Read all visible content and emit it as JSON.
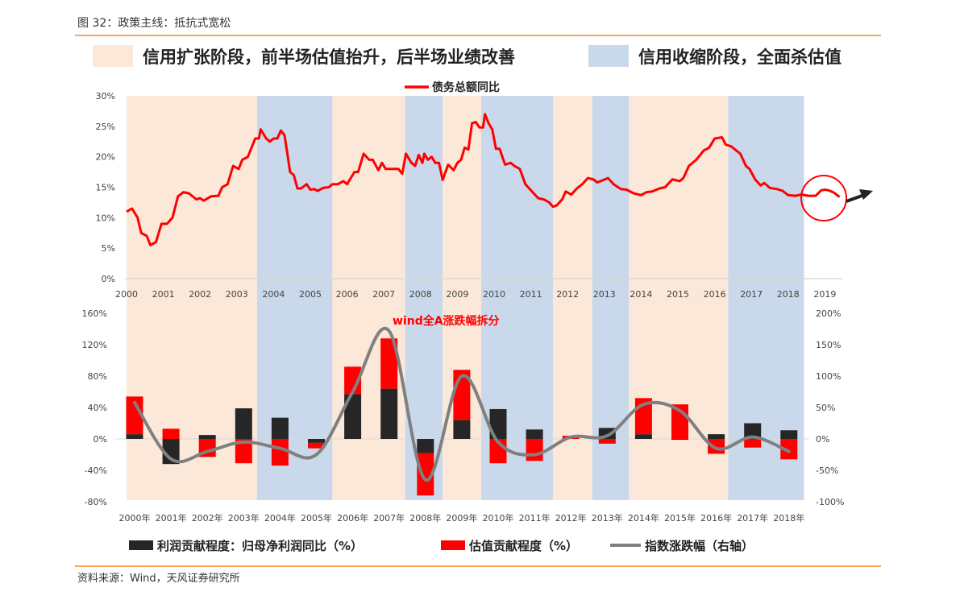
{
  "figure_title": "图 32：政策主线：抵抗式宽松",
  "source": "资料来源：Wind，天风证券研究所",
  "phase_legend": {
    "expansion": "信用扩张阶段，前半场估值抬升，后半场业绩改善",
    "contraction": "信用收缩阶段，全面杀估值"
  },
  "colors": {
    "expansion": "#fce8d9",
    "contraction": "#c9d8ea",
    "line": "#ff0000",
    "profit": "#262626",
    "valuation": "#ff0000",
    "index": "#808080",
    "accent": "#f08a24"
  },
  "phases": [
    {
      "type": "expansion",
      "from": 2000,
      "to": 2003.55
    },
    {
      "type": "contraction",
      "from": 2003.55,
      "to": 2005.6
    },
    {
      "type": "expansion",
      "from": 2005.6,
      "to": 2007.58
    },
    {
      "type": "contraction",
      "from": 2007.58,
      "to": 2008.6
    },
    {
      "type": "expansion",
      "from": 2008.6,
      "to": 2009.65
    },
    {
      "type": "contraction",
      "from": 2009.65,
      "to": 2011.6
    },
    {
      "type": "expansion",
      "from": 2011.6,
      "to": 2012.67
    },
    {
      "type": "contraction",
      "from": 2012.67,
      "to": 2013.67
    },
    {
      "type": "expansion",
      "from": 2013.67,
      "to": 2016.37
    },
    {
      "type": "contraction",
      "from": 2016.37,
      "to": 2018.43
    }
  ],
  "chart_data": [
    {
      "type": "line",
      "series": [
        {
          "name": "债务总额同比",
          "points": [
            [
              2000.0,
              11
            ],
            [
              2000.15,
              11.5
            ],
            [
              2000.3,
              10
            ],
            [
              2000.4,
              7.5
            ],
            [
              2000.55,
              7
            ],
            [
              2000.65,
              5.5
            ],
            [
              2000.8,
              6
            ],
            [
              2000.95,
              9
            ],
            [
              2001.1,
              9
            ],
            [
              2001.25,
              10
            ],
            [
              2001.4,
              13.5
            ],
            [
              2001.55,
              14.2
            ],
            [
              2001.7,
              14
            ],
            [
              2001.9,
              13
            ],
            [
              2002.0,
              13.2
            ],
            [
              2002.1,
              12.8
            ],
            [
              2002.3,
              13.5
            ],
            [
              2002.5,
              13.6
            ],
            [
              2002.6,
              15
            ],
            [
              2002.75,
              15.5
            ],
            [
              2002.9,
              18.5
            ],
            [
              2003.05,
              18
            ],
            [
              2003.15,
              19.5
            ],
            [
              2003.3,
              20
            ],
            [
              2003.5,
              23
            ],
            [
              2003.6,
              23
            ],
            [
              2003.65,
              24.5
            ],
            [
              2003.8,
              23
            ],
            [
              2003.9,
              22.5
            ],
            [
              2004.0,
              23
            ],
            [
              2004.1,
              23
            ],
            [
              2004.2,
              24.3
            ],
            [
              2004.3,
              23.5
            ],
            [
              2004.45,
              17.5
            ],
            [
              2004.55,
              17
            ],
            [
              2004.65,
              14.8
            ],
            [
              2004.75,
              14.8
            ],
            [
              2004.9,
              15.5
            ],
            [
              2005.0,
              14.6
            ],
            [
              2005.1,
              14.7
            ],
            [
              2005.2,
              14.4
            ],
            [
              2005.35,
              14.9
            ],
            [
              2005.5,
              15
            ],
            [
              2005.6,
              15.5
            ],
            [
              2005.75,
              15.5
            ],
            [
              2005.9,
              16
            ],
            [
              2006.0,
              15.5
            ],
            [
              2006.2,
              17.5
            ],
            [
              2006.3,
              17.5
            ],
            [
              2006.45,
              20.5
            ],
            [
              2006.6,
              19.5
            ],
            [
              2006.7,
              19.5
            ],
            [
              2006.85,
              17.8
            ],
            [
              2006.95,
              19
            ],
            [
              2007.05,
              18
            ],
            [
              2007.2,
              18
            ],
            [
              2007.4,
              18
            ],
            [
              2007.5,
              17.2
            ],
            [
              2007.6,
              20.5
            ],
            [
              2007.75,
              19
            ],
            [
              2007.85,
              18.5
            ],
            [
              2007.95,
              20.3
            ],
            [
              2008.05,
              19
            ],
            [
              2008.1,
              20.5
            ],
            [
              2008.2,
              19.5
            ],
            [
              2008.3,
              20
            ],
            [
              2008.4,
              19
            ],
            [
              2008.5,
              19
            ],
            [
              2008.6,
              16.2
            ],
            [
              2008.75,
              18.7
            ],
            [
              2008.9,
              17.8
            ],
            [
              2009.0,
              19
            ],
            [
              2009.1,
              19.5
            ],
            [
              2009.2,
              21.5
            ],
            [
              2009.3,
              21.2
            ],
            [
              2009.4,
              25.5
            ],
            [
              2009.5,
              25.7
            ],
            [
              2009.6,
              24.8
            ],
            [
              2009.7,
              24.8
            ],
            [
              2009.75,
              27
            ],
            [
              2009.85,
              25.5
            ],
            [
              2009.95,
              24.5
            ],
            [
              2010.05,
              21.3
            ],
            [
              2010.15,
              21.3
            ],
            [
              2010.3,
              18.7
            ],
            [
              2010.45,
              19
            ],
            [
              2010.55,
              18.5
            ],
            [
              2010.7,
              18
            ],
            [
              2010.85,
              15.5
            ],
            [
              2011.0,
              14.5
            ],
            [
              2011.2,
              13.2
            ],
            [
              2011.35,
              13
            ],
            [
              2011.5,
              12.5
            ],
            [
              2011.6,
              11.8
            ],
            [
              2011.7,
              12
            ],
            [
              2011.85,
              13
            ],
            [
              2011.95,
              14.3
            ],
            [
              2012.1,
              13.8
            ],
            [
              2012.25,
              14.8
            ],
            [
              2012.4,
              15.5
            ],
            [
              2012.55,
              16.5
            ],
            [
              2012.7,
              16.3
            ],
            [
              2012.8,
              15.8
            ],
            [
              2012.9,
              16
            ],
            [
              2013.1,
              16.5
            ],
            [
              2013.25,
              15.5
            ],
            [
              2013.45,
              14.7
            ],
            [
              2013.6,
              14.6
            ],
            [
              2013.8,
              14
            ],
            [
              2014.0,
              13.7
            ],
            [
              2014.15,
              14.2
            ],
            [
              2014.3,
              14.3
            ],
            [
              2014.5,
              14.8
            ],
            [
              2014.65,
              15
            ],
            [
              2014.85,
              16.3
            ],
            [
              2015.05,
              16
            ],
            [
              2015.15,
              16.5
            ],
            [
              2015.3,
              18.5
            ],
            [
              2015.5,
              19.5
            ],
            [
              2015.7,
              21
            ],
            [
              2015.85,
              21.5
            ],
            [
              2016.0,
              23
            ],
            [
              2016.2,
              23.2
            ],
            [
              2016.3,
              22
            ],
            [
              2016.45,
              21.7
            ],
            [
              2016.7,
              20.5
            ],
            [
              2016.85,
              18.5
            ],
            [
              2016.95,
              18
            ],
            [
              2017.1,
              16.3
            ],
            [
              2017.25,
              15.3
            ],
            [
              2017.35,
              15.7
            ],
            [
              2017.5,
              14.9
            ],
            [
              2017.7,
              14.7
            ],
            [
              2017.85,
              14.4
            ],
            [
              2018.0,
              13.7
            ],
            [
              2018.2,
              13.6
            ],
            [
              2018.35,
              13.8
            ],
            [
              2018.55,
              13.6
            ],
            [
              2018.75,
              13.6
            ],
            [
              2018.9,
              14.5
            ],
            [
              2019.0,
              14.6
            ],
            [
              2019.1,
              14.5
            ],
            [
              2019.25,
              14.1
            ],
            [
              2019.4,
              13.4
            ]
          ]
        }
      ],
      "xlim": [
        2000,
        2019.5
      ],
      "ylim": [
        0,
        30
      ],
      "x_ticks": [
        "2000",
        "2001",
        "2002",
        "2003",
        "2004",
        "2005",
        "2006",
        "2007",
        "2008",
        "2009",
        "2010",
        "2011",
        "2012",
        "2013",
        "2014",
        "2015",
        "2016",
        "2017",
        "2018",
        "2019"
      ],
      "y_ticks": [
        "0%",
        "5%",
        "10%",
        "15%",
        "20%",
        "25%",
        "30%"
      ],
      "legend": "top-center",
      "annotation": "circle around 2019 with upward arrow"
    },
    {
      "type": "bar",
      "title": "wind全A涨跌幅拆分",
      "categories": [
        "2000年",
        "2001年",
        "2002年",
        "2003年",
        "2004年",
        "2005年",
        "2006年",
        "2007年",
        "2008年",
        "2009年",
        "2010年",
        "2011年",
        "2012年",
        "2013年",
        "2014年",
        "2015年",
        "2016年",
        "2017年",
        "2018年"
      ],
      "stacked": true,
      "series": [
        {
          "name": "利润贡献程度：归母净利润同比（%）",
          "axis": "left",
          "values": [
            6,
            -32,
            5,
            39,
            27,
            -5,
            57,
            64,
            -18,
            24,
            38,
            12,
            0,
            14,
            6,
            -1,
            6,
            20,
            11
          ]
        },
        {
          "name": "估值贡献程度（%）",
          "axis": "left",
          "values": [
            48,
            13,
            -23,
            -31,
            -34,
            -7,
            35,
            64,
            -54,
            64,
            -31,
            -28,
            4,
            -6,
            46,
            44,
            -19,
            -11,
            -26
          ]
        },
        {
          "name": "指数涨跌幅（右轴）",
          "axis": "right",
          "type": "smooth-line",
          "values": [
            58,
            -32,
            -20,
            -5,
            -15,
            -25,
            75,
            172,
            -65,
            100,
            -5,
            -25,
            3,
            5,
            55,
            45,
            -15,
            3,
            -20
          ]
        }
      ],
      "ylim_left": [
        -80,
        160
      ],
      "ylim_right": [
        -100,
        200
      ],
      "y_ticks_left": [
        "-80%",
        "-40%",
        "0%",
        "40%",
        "80%",
        "120%",
        "160%"
      ],
      "y_ticks_right": [
        "-100%",
        "-50%",
        "0%",
        "50%",
        "100%",
        "150%",
        "200%"
      ],
      "legend": "bottom"
    }
  ]
}
